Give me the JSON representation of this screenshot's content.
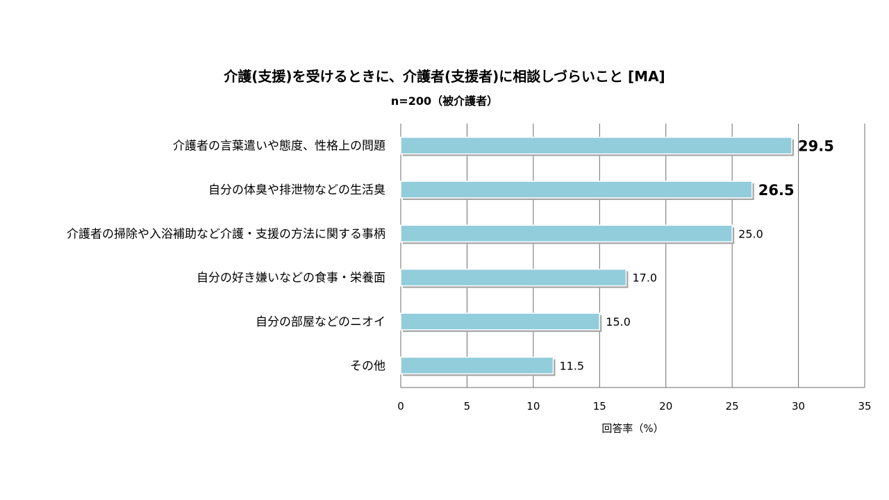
{
  "chart_data": {
    "type": "bar",
    "orientation": "horizontal",
    "title": "介護(支援)を受けるときに、介護者(支援者)に相談しづらいこと [MA]",
    "subtitle": "n=200（被介護者）",
    "xlabel": "回答率（%）",
    "ylabel": "",
    "xlim": [
      0,
      35
    ],
    "xticks": [
      0,
      5,
      10,
      15,
      20,
      25,
      30,
      35
    ],
    "grid": true,
    "legend": "none",
    "bar_color": "#92CDDC",
    "categories": [
      "介護者の言葉遣いや態度、性格上の問題",
      "自分の体臭や排泄物などの生活臭",
      "介護者の掃除や入浴補助など介護・支援の方法に関する事柄",
      "自分の好き嫌いなどの食事・栄養面",
      "自分の部屋などのニオイ",
      "その他"
    ],
    "values": [
      29.5,
      26.5,
      25.0,
      17.0,
      15.0,
      11.5
    ],
    "value_labels": [
      "29.5",
      "26.5",
      "25.0",
      "17.0",
      "15.0",
      "11.5"
    ],
    "bold_labels": [
      true,
      true,
      false,
      false,
      false,
      false
    ]
  }
}
